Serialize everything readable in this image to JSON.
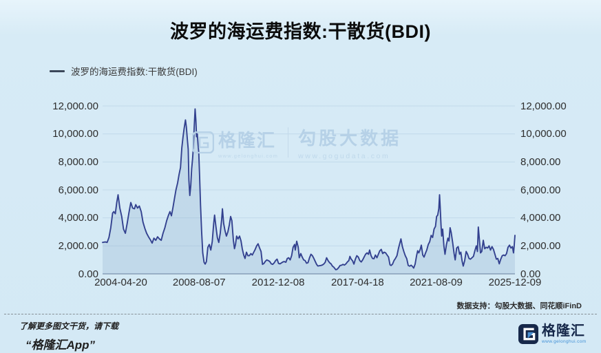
{
  "header": {
    "title": "波罗的海运费指数:干散货(BDI)"
  },
  "legend": {
    "label": "波罗的海运费指数:干散货(BDI)",
    "marker_color": "#3b4759"
  },
  "watermark": {
    "brand1": "格隆汇",
    "url1": "www.gelonghui.com",
    "brand2": "勾股大数据",
    "url2": "www.gogudata.com",
    "color": "#b6d1e7"
  },
  "footer": {
    "data_support": "数据支持：勾股大数据、同花顺iFinD",
    "promo_line1": "了解更多图文干货，请下载",
    "promo_line2": "“格隆汇App”",
    "logo_text": "格隆汇",
    "logo_url": "www.gelonghui.com"
  },
  "colors": {
    "background": "#d7ebf6",
    "line": "#33418f",
    "area_fill": "rgba(108,143,188,0.18)",
    "gridline": "#c2d9ea",
    "axis_line": "#9db2c6",
    "label_text": "#2d2d2d"
  },
  "chart_data": {
    "type": "line",
    "title": "波罗的海运费指数:干散货(BDI)",
    "series_name": "波罗的海运费指数:干散货(BDI)",
    "grid": true,
    "legend_position": "top-left",
    "x_range": [
      2003.3,
      2025.94
    ],
    "y_range": [
      0,
      12000
    ],
    "y_ticks": {
      "values": [
        0,
        2000,
        4000,
        6000,
        8000,
        10000,
        12000
      ],
      "labels": [
        "0.00",
        "2,000.00",
        "4,000.00",
        "6,000.00",
        "8,000.00",
        "10,000.00",
        "12,000.00"
      ]
    },
    "x_ticks": [
      {
        "t": 2004.3,
        "label": "2004-04-20"
      },
      {
        "t": 2008.6,
        "label": "2008-08-07"
      },
      {
        "t": 2012.94,
        "label": "2012-12-08"
      },
      {
        "t": 2017.3,
        "label": "2017-04-18"
      },
      {
        "t": 2021.61,
        "label": "2021-08-09"
      },
      {
        "t": 2025.94,
        "label": "2025-12-09"
      }
    ],
    "points": [
      [
        2003.3,
        2250
      ],
      [
        2003.45,
        2280
      ],
      [
        2003.55,
        2250
      ],
      [
        2003.65,
        2600
      ],
      [
        2003.75,
        3300
      ],
      [
        2003.85,
        4350
      ],
      [
        2003.92,
        4450
      ],
      [
        2004.0,
        4300
      ],
      [
        2004.08,
        5100
      ],
      [
        2004.15,
        5650
      ],
      [
        2004.25,
        4700
      ],
      [
        2004.35,
        4100
      ],
      [
        2004.45,
        3200
      ],
      [
        2004.55,
        2900
      ],
      [
        2004.65,
        3600
      ],
      [
        2004.75,
        4400
      ],
      [
        2004.85,
        5100
      ],
      [
        2004.95,
        4700
      ],
      [
        2005.05,
        4650
      ],
      [
        2005.12,
        4950
      ],
      [
        2005.22,
        4700
      ],
      [
        2005.32,
        4850
      ],
      [
        2005.42,
        4450
      ],
      [
        2005.52,
        3700
      ],
      [
        2005.62,
        3250
      ],
      [
        2005.72,
        2900
      ],
      [
        2005.82,
        2650
      ],
      [
        2005.92,
        2450
      ],
      [
        2006.02,
        2200
      ],
      [
        2006.12,
        2550
      ],
      [
        2006.22,
        2400
      ],
      [
        2006.32,
        2650
      ],
      [
        2006.42,
        2500
      ],
      [
        2006.52,
        2400
      ],
      [
        2006.62,
        2900
      ],
      [
        2006.72,
        3300
      ],
      [
        2006.82,
        3800
      ],
      [
        2006.92,
        4200
      ],
      [
        2007.0,
        4450
      ],
      [
        2007.08,
        4150
      ],
      [
        2007.16,
        4700
      ],
      [
        2007.25,
        5400
      ],
      [
        2007.33,
        6000
      ],
      [
        2007.42,
        6500
      ],
      [
        2007.5,
        7100
      ],
      [
        2007.58,
        7600
      ],
      [
        2007.65,
        9000
      ],
      [
        2007.72,
        9800
      ],
      [
        2007.78,
        10400
      ],
      [
        2007.85,
        11000
      ],
      [
        2007.9,
        10500
      ],
      [
        2007.95,
        9700
      ],
      [
        2008.0,
        8900
      ],
      [
        2008.04,
        6700
      ],
      [
        2008.09,
        5600
      ],
      [
        2008.14,
        6300
      ],
      [
        2008.19,
        7500
      ],
      [
        2008.24,
        8200
      ],
      [
        2008.28,
        9000
      ],
      [
        2008.33,
        10500
      ],
      [
        2008.38,
        11790
      ],
      [
        2008.42,
        11000
      ],
      [
        2008.46,
        9800
      ],
      [
        2008.5,
        10000
      ],
      [
        2008.54,
        9300
      ],
      [
        2008.58,
        8700
      ],
      [
        2008.62,
        7200
      ],
      [
        2008.68,
        4900
      ],
      [
        2008.74,
        3000
      ],
      [
        2008.8,
        1500
      ],
      [
        2008.87,
        830
      ],
      [
        2008.93,
        700
      ],
      [
        2009.0,
        870
      ],
      [
        2009.08,
        1900
      ],
      [
        2009.16,
        2100
      ],
      [
        2009.24,
        1700
      ],
      [
        2009.32,
        2300
      ],
      [
        2009.4,
        3600
      ],
      [
        2009.45,
        4200
      ],
      [
        2009.52,
        3400
      ],
      [
        2009.6,
        2600
      ],
      [
        2009.68,
        2250
      ],
      [
        2009.76,
        2900
      ],
      [
        2009.84,
        3900
      ],
      [
        2009.88,
        4650
      ],
      [
        2009.95,
        3600
      ],
      [
        2010.02,
        3100
      ],
      [
        2010.1,
        2700
      ],
      [
        2010.18,
        3000
      ],
      [
        2010.26,
        3500
      ],
      [
        2010.33,
        4100
      ],
      [
        2010.4,
        3800
      ],
      [
        2010.48,
        2400
      ],
      [
        2010.54,
        1800
      ],
      [
        2010.6,
        2100
      ],
      [
        2010.66,
        2700
      ],
      [
        2010.74,
        2500
      ],
      [
        2010.82,
        2700
      ],
      [
        2010.9,
        2350
      ],
      [
        2010.97,
        1800
      ],
      [
        2011.05,
        1350
      ],
      [
        2011.12,
        1100
      ],
      [
        2011.2,
        1550
      ],
      [
        2011.28,
        1300
      ],
      [
        2011.36,
        1300
      ],
      [
        2011.44,
        1450
      ],
      [
        2011.52,
        1350
      ],
      [
        2011.6,
        1550
      ],
      [
        2011.68,
        1750
      ],
      [
        2011.76,
        2000
      ],
      [
        2011.84,
        2150
      ],
      [
        2011.92,
        1850
      ],
      [
        2012.0,
        1600
      ],
      [
        2012.08,
        680
      ],
      [
        2012.16,
        750
      ],
      [
        2012.24,
        900
      ],
      [
        2012.32,
        1000
      ],
      [
        2012.4,
        950
      ],
      [
        2012.48,
        880
      ],
      [
        2012.56,
        720
      ],
      [
        2012.64,
        680
      ],
      [
        2012.72,
        780
      ],
      [
        2012.8,
        950
      ],
      [
        2012.88,
        1050
      ],
      [
        2012.96,
        750
      ],
      [
        2013.04,
        720
      ],
      [
        2013.12,
        780
      ],
      [
        2013.2,
        850
      ],
      [
        2013.28,
        880
      ],
      [
        2013.36,
        830
      ],
      [
        2013.44,
        1100
      ],
      [
        2013.52,
        1150
      ],
      [
        2013.6,
        1000
      ],
      [
        2013.68,
        1300
      ],
      [
        2013.76,
        1900
      ],
      [
        2013.84,
        2100
      ],
      [
        2013.88,
        1700
      ],
      [
        2013.96,
        2330
      ],
      [
        2014.04,
        1900
      ],
      [
        2014.1,
        1150
      ],
      [
        2014.18,
        1450
      ],
      [
        2014.26,
        1200
      ],
      [
        2014.34,
        1000
      ],
      [
        2014.42,
        950
      ],
      [
        2014.5,
        760
      ],
      [
        2014.58,
        800
      ],
      [
        2014.66,
        1150
      ],
      [
        2014.74,
        1400
      ],
      [
        2014.82,
        1300
      ],
      [
        2014.9,
        1100
      ],
      [
        2014.97,
        900
      ],
      [
        2015.05,
        680
      ],
      [
        2015.12,
        560
      ],
      [
        2015.2,
        580
      ],
      [
        2015.28,
        600
      ],
      [
        2015.36,
        630
      ],
      [
        2015.44,
        700
      ],
      [
        2015.52,
        820
      ],
      [
        2015.6,
        1150
      ],
      [
        2015.68,
        950
      ],
      [
        2015.76,
        800
      ],
      [
        2015.84,
        720
      ],
      [
        2015.92,
        550
      ],
      [
        2016.0,
        470
      ],
      [
        2016.1,
        300
      ],
      [
        2016.18,
        330
      ],
      [
        2016.26,
        450
      ],
      [
        2016.34,
        600
      ],
      [
        2016.42,
        620
      ],
      [
        2016.5,
        680
      ],
      [
        2016.58,
        630
      ],
      [
        2016.66,
        720
      ],
      [
        2016.74,
        850
      ],
      [
        2016.82,
        950
      ],
      [
        2016.88,
        1250
      ],
      [
        2016.95,
        1050
      ],
      [
        2017.02,
        950
      ],
      [
        2017.1,
        700
      ],
      [
        2017.18,
        1050
      ],
      [
        2017.26,
        1300
      ],
      [
        2017.34,
        1200
      ],
      [
        2017.42,
        950
      ],
      [
        2017.5,
        850
      ],
      [
        2017.58,
        1000
      ],
      [
        2017.66,
        1200
      ],
      [
        2017.74,
        1400
      ],
      [
        2017.82,
        1500
      ],
      [
        2017.9,
        1400
      ],
      [
        2017.96,
        1700
      ],
      [
        2018.04,
        1300
      ],
      [
        2018.12,
        1100
      ],
      [
        2018.2,
        1080
      ],
      [
        2018.28,
        1350
      ],
      [
        2018.36,
        1150
      ],
      [
        2018.44,
        1400
      ],
      [
        2018.52,
        1650
      ],
      [
        2018.6,
        1750
      ],
      [
        2018.68,
        1450
      ],
      [
        2018.76,
        1550
      ],
      [
        2018.84,
        1500
      ],
      [
        2018.92,
        1350
      ],
      [
        2019.0,
        1200
      ],
      [
        2019.08,
        650
      ],
      [
        2019.14,
        600
      ],
      [
        2019.22,
        700
      ],
      [
        2019.3,
        950
      ],
      [
        2019.38,
        1100
      ],
      [
        2019.46,
        1300
      ],
      [
        2019.54,
        1800
      ],
      [
        2019.62,
        2200
      ],
      [
        2019.68,
        2500
      ],
      [
        2019.76,
        1950
      ],
      [
        2019.84,
        1600
      ],
      [
        2019.92,
        1300
      ],
      [
        2020.0,
        1090
      ],
      [
        2020.08,
        600
      ],
      [
        2020.16,
        550
      ],
      [
        2020.24,
        620
      ],
      [
        2020.32,
        520
      ],
      [
        2020.38,
        420
      ],
      [
        2020.46,
        700
      ],
      [
        2020.54,
        1300
      ],
      [
        2020.6,
        1650
      ],
      [
        2020.66,
        1500
      ],
      [
        2020.74,
        1750
      ],
      [
        2020.8,
        2050
      ],
      [
        2020.88,
        1350
      ],
      [
        2020.95,
        1200
      ],
      [
        2021.02,
        1450
      ],
      [
        2021.1,
        1700
      ],
      [
        2021.18,
        2100
      ],
      [
        2021.26,
        2300
      ],
      [
        2021.34,
        2750
      ],
      [
        2021.42,
        2600
      ],
      [
        2021.5,
        3200
      ],
      [
        2021.58,
        3400
      ],
      [
        2021.64,
        4100
      ],
      [
        2021.7,
        4200
      ],
      [
        2021.76,
        4650
      ],
      [
        2021.8,
        5650
      ],
      [
        2021.84,
        4700
      ],
      [
        2021.88,
        3500
      ],
      [
        2021.92,
        2700
      ],
      [
        2021.97,
        3200
      ],
      [
        2022.04,
        2000
      ],
      [
        2022.1,
        1400
      ],
      [
        2022.18,
        2100
      ],
      [
        2022.26,
        2550
      ],
      [
        2022.32,
        2350
      ],
      [
        2022.38,
        3300
      ],
      [
        2022.44,
        2950
      ],
      [
        2022.52,
        2250
      ],
      [
        2022.6,
        1450
      ],
      [
        2022.66,
        1000
      ],
      [
        2022.74,
        1850
      ],
      [
        2022.82,
        1950
      ],
      [
        2022.9,
        1400
      ],
      [
        2022.97,
        1550
      ],
      [
        2023.04,
        900
      ],
      [
        2023.1,
        560
      ],
      [
        2023.18,
        950
      ],
      [
        2023.26,
        1600
      ],
      [
        2023.34,
        1400
      ],
      [
        2023.42,
        1100
      ],
      [
        2023.5,
        1050
      ],
      [
        2023.58,
        1150
      ],
      [
        2023.66,
        1250
      ],
      [
        2023.74,
        1650
      ],
      [
        2023.82,
        2000
      ],
      [
        2023.88,
        1600
      ],
      [
        2023.93,
        3350
      ],
      [
        2023.98,
        2600
      ],
      [
        2024.05,
        1500
      ],
      [
        2024.12,
        1600
      ],
      [
        2024.2,
        2400
      ],
      [
        2024.28,
        1800
      ],
      [
        2024.36,
        1900
      ],
      [
        2024.44,
        1850
      ],
      [
        2024.52,
        2000
      ],
      [
        2024.6,
        1700
      ],
      [
        2024.68,
        1950
      ],
      [
        2024.76,
        1750
      ],
      [
        2024.84,
        1400
      ],
      [
        2024.92,
        1050
      ],
      [
        2025.0,
        1100
      ],
      [
        2025.08,
        720
      ],
      [
        2025.16,
        1050
      ],
      [
        2025.24,
        1300
      ],
      [
        2025.32,
        1350
      ],
      [
        2025.4,
        1300
      ],
      [
        2025.48,
        1450
      ],
      [
        2025.56,
        1900
      ],
      [
        2025.64,
        2050
      ],
      [
        2025.72,
        1850
      ],
      [
        2025.8,
        1950
      ],
      [
        2025.86,
        1500
      ],
      [
        2025.9,
        2000
      ],
      [
        2025.94,
        2750
      ]
    ]
  }
}
